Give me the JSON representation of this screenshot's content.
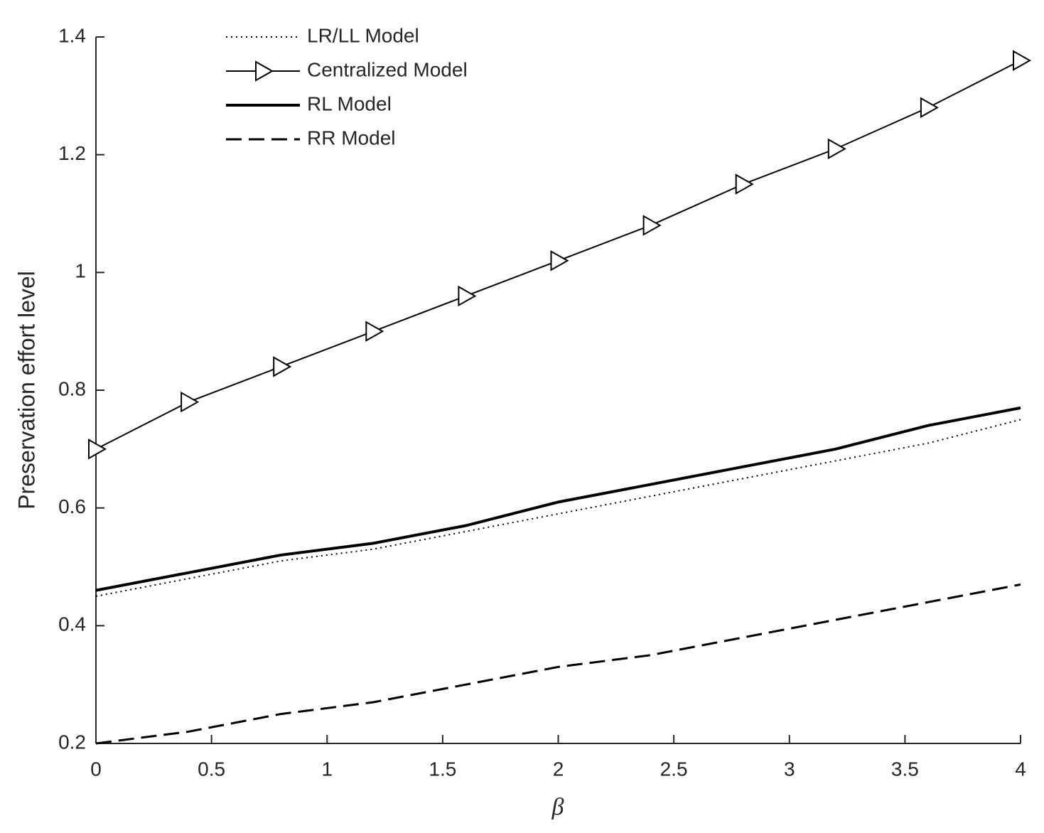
{
  "chart_data": {
    "type": "line",
    "x_label": "β",
    "y_label": "Preservation effort level",
    "x": [
      0,
      0.4,
      0.8,
      1.2,
      1.6,
      2.0,
      2.4,
      2.8,
      3.2,
      3.6,
      4.0
    ],
    "series": [
      {
        "name": "LR/LL Model",
        "color": "#000000",
        "line_style": "dotted",
        "line_width": 2,
        "marker": "none",
        "values": [
          0.45,
          0.48,
          0.51,
          0.53,
          0.56,
          0.59,
          0.62,
          0.65,
          0.68,
          0.71,
          0.75
        ]
      },
      {
        "name": "Centralized Model",
        "color": "#000000",
        "line_style": "solid",
        "line_width": 2,
        "marker": "triangle-right",
        "values": [
          0.7,
          0.78,
          0.84,
          0.9,
          0.96,
          1.02,
          1.08,
          1.15,
          1.21,
          1.28,
          1.36
        ]
      },
      {
        "name": "RL Model",
        "color": "#000000",
        "line_style": "solid",
        "line_width": 4,
        "marker": "none",
        "values": [
          0.46,
          0.49,
          0.52,
          0.54,
          0.57,
          0.61,
          0.64,
          0.67,
          0.7,
          0.74,
          0.77
        ]
      },
      {
        "name": "RR Model",
        "color": "#000000",
        "line_style": "dashed",
        "line_width": 3,
        "marker": "none",
        "values": [
          0.2,
          0.22,
          0.25,
          0.27,
          0.3,
          0.33,
          0.35,
          0.38,
          0.41,
          0.44,
          0.47
        ]
      }
    ],
    "xlim": [
      0,
      4
    ],
    "xticks": [
      0,
      0.5,
      1,
      1.5,
      2,
      2.5,
      3,
      3.5,
      4
    ],
    "ylim": [
      0.2,
      1.4
    ],
    "yticks": [
      0.2,
      0.4,
      0.6,
      0.8,
      1,
      1.2,
      1.4
    ],
    "grid": false,
    "legend": "top-left"
  }
}
